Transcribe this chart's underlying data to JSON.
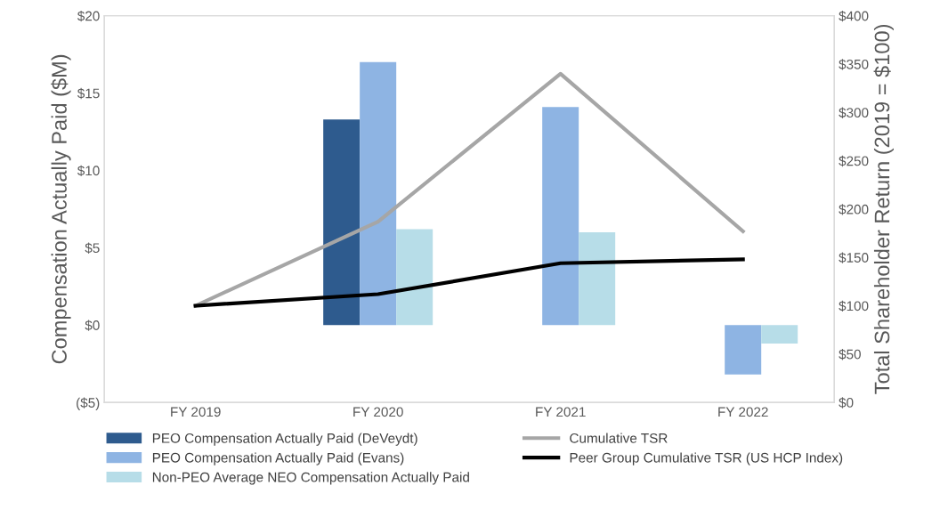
{
  "chart_data": {
    "type": "bar",
    "ylabel": "Compensation Actually Paid ($M)",
    "y2label": "Total Shareholder Return (2019 = $100)",
    "categories": [
      "FY 2019",
      "FY 2020",
      "FY 2021",
      "FY 2022"
    ],
    "series": [
      {
        "name": "PEO Compensation Actually Paid (DeVeydt)",
        "color": "#2e5b8e",
        "values": [
          null,
          13.3,
          null,
          null
        ]
      },
      {
        "name": "PEO Compensation Actually Paid (Evans)",
        "color": "#8eb4e3",
        "values": [
          null,
          17.0,
          14.1,
          -3.2
        ]
      },
      {
        "name": "Non-PEO Average NEO Compensation Actually Paid",
        "color": "#b7dde8",
        "values": [
          null,
          6.2,
          6.0,
          -1.2
        ]
      },
      {
        "name": "Cumulative TSR",
        "type": "line",
        "axis": "y2",
        "color": "#a6a6a6",
        "values": [
          100,
          187,
          340,
          177
        ]
      },
      {
        "name": "Peer Group Cumulative TSR (US HCP Index)",
        "type": "line",
        "axis": "y2",
        "color": "#000000",
        "values": [
          100,
          112,
          144,
          148
        ]
      }
    ],
    "ylim": [
      -5,
      20
    ],
    "yticks": [
      {
        "value": -5,
        "label": "($5)"
      },
      {
        "value": 0,
        "label": "$0"
      },
      {
        "value": 5,
        "label": "$5"
      },
      {
        "value": 10,
        "label": "$10"
      },
      {
        "value": 15,
        "label": "$15"
      },
      {
        "value": 20,
        "label": "$20"
      }
    ],
    "y2lim": [
      0,
      400
    ],
    "y2ticks": [
      {
        "value": 0,
        "label": "$0"
      },
      {
        "value": 50,
        "label": "$50"
      },
      {
        "value": 100,
        "label": "$100"
      },
      {
        "value": 150,
        "label": "$150"
      },
      {
        "value": 200,
        "label": "$200"
      },
      {
        "value": 250,
        "label": "$250"
      },
      {
        "value": 300,
        "label": "$300"
      },
      {
        "value": 350,
        "label": "$350"
      },
      {
        "value": 400,
        "label": "$400"
      }
    ],
    "grid": false,
    "legend": "bottom",
    "marker": "none",
    "line_style": "solid"
  }
}
